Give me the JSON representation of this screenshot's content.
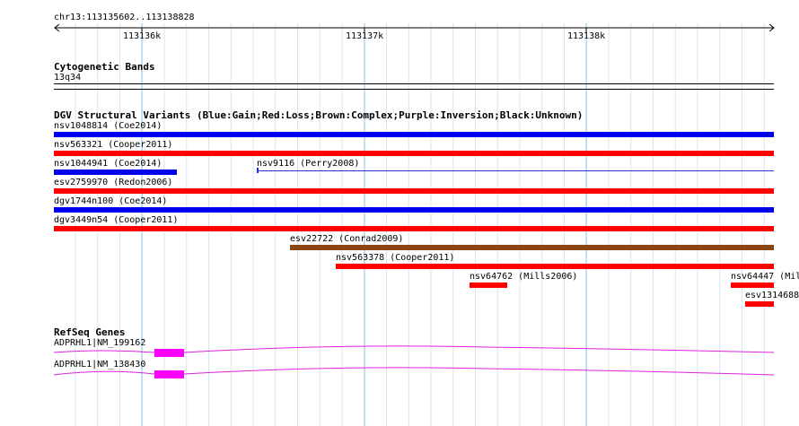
{
  "ruler": {
    "locus": "chr13:113135602..113138828",
    "ticks": [
      "113136k",
      "113137k",
      "113138k"
    ]
  },
  "cytobands": {
    "title": "Cytogenetic Bands",
    "band_label": "13q34"
  },
  "dgv": {
    "title": "DGV Structural Variants (Blue:Gain;Red:Loss;Brown:Complex;Purple:Inversion;Black:Unknown)",
    "colors": {
      "gain": "#0000ee",
      "loss": "#ff0000",
      "complex": "#8b4513",
      "thin": "#2233cc"
    },
    "features": [
      {
        "label": "nsv1048814 (Coe2014)",
        "type": "gain"
      },
      {
        "label": "nsv563321 (Cooper2011)",
        "type": "loss"
      },
      {
        "label": "nsv1044941 (Coe2014)",
        "type": "gain"
      },
      {
        "label": "nsv9116 (Perry2008)",
        "type": "thin"
      },
      {
        "label": "esv2759970 (Redon2006)",
        "type": "loss"
      },
      {
        "label": "dgv1744n100 (Coe2014)",
        "type": "gain"
      },
      {
        "label": "dgv3449n54 (Cooper2011)",
        "type": "loss"
      },
      {
        "label": "esv22722 (Conrad2009)",
        "type": "complex"
      },
      {
        "label": "nsv563378 (Cooper2011)",
        "type": "loss"
      },
      {
        "label": "nsv64762 (Mills2006)",
        "type": "loss"
      },
      {
        "label": "nsv64447 (Mil",
        "type": "loss"
      },
      {
        "label": "esv1314688",
        "type": "loss"
      }
    ]
  },
  "refseq": {
    "title": "RefSeq Genes",
    "color": "#dd22dd",
    "genes": [
      {
        "label": "ADPRHL1|NM_199162"
      },
      {
        "label": "ADPRHL1|NM_138430"
      }
    ]
  }
}
